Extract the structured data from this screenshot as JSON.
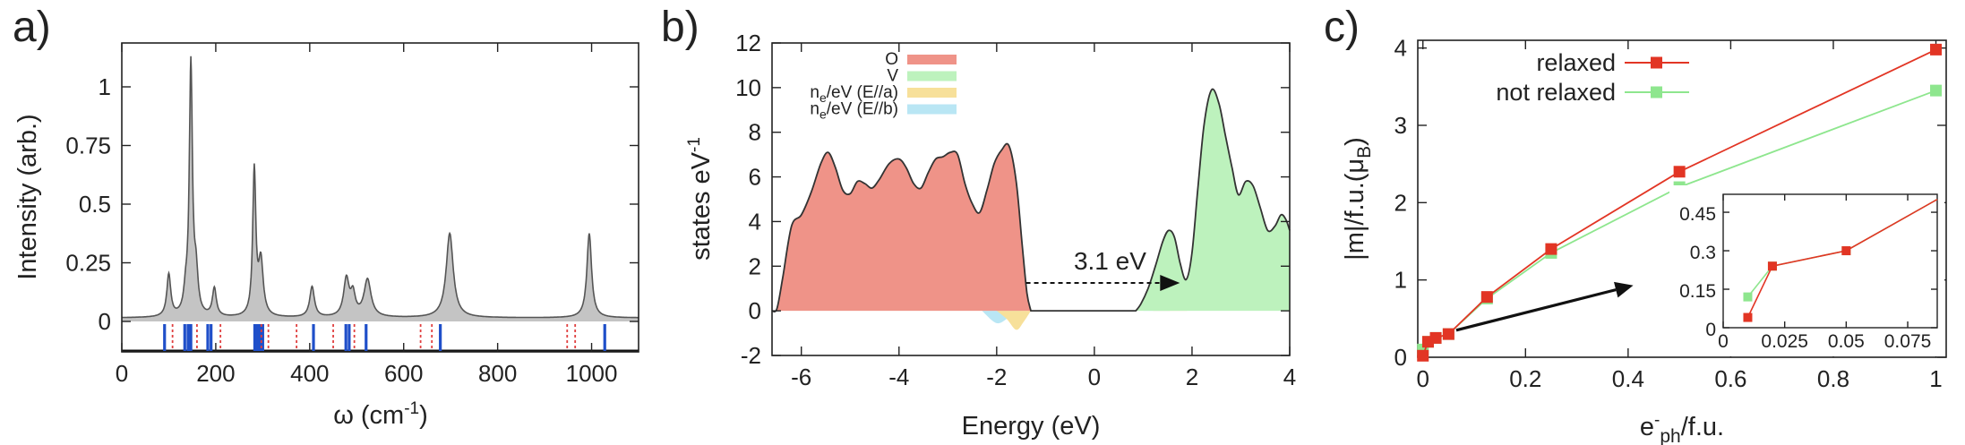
{
  "figure": {
    "panel_letters": [
      "a)",
      "b)",
      "c)"
    ],
    "colors": {
      "raman_fill": "#c4c4c4",
      "raman_line": "#555555",
      "blue_ticks": "#1f4fc9",
      "red_ticks": "#e04040",
      "O": "#ef9388",
      "V": "#bdf2bd",
      "E_a": "#f7e09a",
      "E_b": "#b9e6f4",
      "relaxed": "#e23524",
      "not_relaxed": "#8ee68e",
      "arrow": "#111111"
    }
  },
  "chart_data": [
    {
      "id": "a",
      "type": "line",
      "title": "",
      "xlabel_main": "ω (cm",
      "xlabel_sup": "-1",
      "xlabel_end": ")",
      "ylabel": "Intensity (arb.)",
      "xlim": [
        0,
        1100
      ],
      "ylim": [
        -0.12,
        1.2
      ],
      "xticks": [
        0,
        200,
        400,
        600,
        800,
        1000
      ],
      "xtick_labels": [
        "0",
        "200",
        "400",
        "600",
        "800",
        "1000"
      ],
      "yticks": [
        0,
        0.25,
        0.5,
        0.75,
        1
      ],
      "ytick_labels": [
        "0",
        "0.25",
        "0.5",
        "0.75",
        "1"
      ],
      "baseline": 0.015,
      "peaks": [
        {
          "x": 100,
          "h": 0.18,
          "w": 5
        },
        {
          "x": 136,
          "h": 0.08,
          "w": 5
        },
        {
          "x": 147,
          "h": 1.07,
          "w": 4
        },
        {
          "x": 158,
          "h": 0.16,
          "w": 5
        },
        {
          "x": 197,
          "h": 0.12,
          "w": 5
        },
        {
          "x": 282,
          "h": 0.62,
          "w": 4
        },
        {
          "x": 296,
          "h": 0.23,
          "w": 6
        },
        {
          "x": 405,
          "h": 0.13,
          "w": 6
        },
        {
          "x": 478,
          "h": 0.16,
          "w": 7
        },
        {
          "x": 492,
          "h": 0.09,
          "w": 6
        },
        {
          "x": 523,
          "h": 0.16,
          "w": 9
        },
        {
          "x": 698,
          "h": 0.36,
          "w": 9
        },
        {
          "x": 995,
          "h": 0.36,
          "w": 6
        }
      ],
      "blue_modes": [
        91,
        134,
        141,
        147,
        183,
        190,
        283,
        288,
        292,
        296,
        300,
        408,
        477,
        484,
        520,
        678,
        1028
      ],
      "red_modes": [
        108,
        160,
        210,
        297,
        312,
        372,
        450,
        495,
        636,
        660,
        948,
        965
      ]
    },
    {
      "id": "b",
      "type": "area",
      "title": "",
      "xlabel": "Energy (eV)",
      "ylabel_main": "states eV",
      "ylabel_sup": "-1",
      "xlim": [
        -6.6,
        4.0
      ],
      "ylim": [
        -2,
        12
      ],
      "xticks": [
        -6,
        -4,
        -2,
        0,
        2,
        4
      ],
      "xtick_labels": [
        "-6",
        "-4",
        "-2",
        "0",
        "2",
        "4"
      ],
      "yticks": [
        -2,
        0,
        2,
        4,
        6,
        8,
        10,
        12
      ],
      "ytick_labels": [
        "-2",
        "0",
        "2",
        "4",
        "6",
        "8",
        "10",
        "12"
      ],
      "legend": [
        {
          "label": "O",
          "sub": "",
          "tail": "",
          "color_key": "O"
        },
        {
          "label": "V",
          "sub": "",
          "tail": "",
          "color_key": "V"
        },
        {
          "label": "n",
          "sub": "e",
          "tail": "/eV (E//a)",
          "color_key": "E_a"
        },
        {
          "label": "n",
          "sub": "e",
          "tail": "/eV (E//b)",
          "color_key": "E_b"
        }
      ],
      "series": [
        {
          "name": "O",
          "x": [
            -6.6,
            -6.5,
            -6.38,
            -6.2,
            -6.0,
            -5.8,
            -5.6,
            -5.45,
            -5.3,
            -5.15,
            -5.0,
            -4.85,
            -4.7,
            -4.55,
            -4.4,
            -4.2,
            -4.0,
            -3.85,
            -3.7,
            -3.55,
            -3.4,
            -3.25,
            -3.1,
            -2.95,
            -2.8,
            -2.65,
            -2.5,
            -2.35,
            -2.2,
            -2.05,
            -1.9,
            -1.75,
            -1.6,
            -1.48,
            -1.38,
            -1.3
          ],
          "y": [
            0,
            0.1,
            1.5,
            3.8,
            4.3,
            5.3,
            6.6,
            7.1,
            6.4,
            5.4,
            5.25,
            5.8,
            5.7,
            5.5,
            5.9,
            6.6,
            6.8,
            6.4,
            5.7,
            5.5,
            6.2,
            6.8,
            6.9,
            7.1,
            7.0,
            5.7,
            4.8,
            4.4,
            5.4,
            6.6,
            7.2,
            7.4,
            5.8,
            3.0,
            0.8,
            0
          ]
        },
        {
          "name": "V",
          "x": [
            0.85,
            0.95,
            1.1,
            1.25,
            1.4,
            1.52,
            1.64,
            1.76,
            1.88,
            2.0,
            2.12,
            2.25,
            2.4,
            2.55,
            2.68,
            2.82,
            2.95,
            3.1,
            3.25,
            3.4,
            3.55,
            3.7,
            3.82,
            3.92,
            4.0
          ],
          "y": [
            0,
            0.3,
            1.0,
            2.0,
            3.1,
            3.6,
            3.3,
            2.1,
            1.4,
            2.6,
            5.5,
            8.4,
            9.9,
            9.3,
            7.9,
            6.4,
            5.2,
            5.8,
            5.6,
            4.6,
            3.6,
            3.8,
            4.3,
            4.1,
            3.6
          ]
        },
        {
          "name": "E_a",
          "x": [
            -2.0,
            -1.8,
            -1.6,
            -1.45,
            -1.3,
            1.2,
            1.35,
            1.5,
            1.62,
            1.75,
            1.9
          ],
          "y": [
            0,
            -0.35,
            -0.85,
            -0.5,
            0,
            0,
            0.5,
            0.9,
            0.6,
            0.25,
            0
          ]
        },
        {
          "name": "E_b",
          "x": [
            -2.3,
            -2.0,
            -1.75,
            -1.5,
            1.0,
            1.15,
            1.35,
            1.55
          ],
          "y": [
            0,
            -0.55,
            -0.3,
            0,
            0,
            0.35,
            0.5,
            0
          ]
        }
      ],
      "annotation": {
        "text": "3.1 eV",
        "arrow_from": [
          -1.4,
          1.25
        ],
        "arrow_to": [
          1.75,
          1.25
        ]
      }
    },
    {
      "id": "c",
      "type": "line",
      "title": "",
      "xlabel_main": "e",
      "xlabel_sup": "-",
      "xlabel_sub": "ph",
      "xlabel_end": "/f.u.",
      "ylabel_main": "|m|/f.u.(μ",
      "ylabel_sub": "B",
      "ylabel_end": ")",
      "xlim": [
        -0.01,
        1.02
      ],
      "ylim": [
        0,
        4.1
      ],
      "xticks": [
        0,
        0.2,
        0.4,
        0.6,
        0.8,
        1
      ],
      "xtick_labels": [
        "0",
        "0.2",
        "0.4",
        "0.6",
        "0.8",
        "1"
      ],
      "yticks": [
        0,
        1,
        2,
        3,
        4
      ],
      "ytick_labels": [
        "0",
        "1",
        "2",
        "3",
        "4"
      ],
      "legend": [
        "relaxed",
        "not relaxed"
      ],
      "series": [
        {
          "name": "relaxed",
          "color_key": "relaxed",
          "x": [
            0.0,
            0.01,
            0.025,
            0.05,
            0.125,
            0.25,
            0.5,
            1.0
          ],
          "y": [
            0.02,
            0.2,
            0.25,
            0.3,
            0.78,
            1.4,
            2.4,
            3.98
          ]
        },
        {
          "name": "not relaxed",
          "color_key": "not_relaxed",
          "x": [
            0.0,
            0.01,
            0.025,
            0.05,
            0.125,
            0.25,
            0.5,
            1.0
          ],
          "y": [
            0.1,
            0.2,
            0.25,
            0.3,
            0.76,
            1.35,
            2.2,
            3.45
          ]
        }
      ],
      "inset": {
        "xlim": [
          0,
          0.087
        ],
        "ylim": [
          0,
          0.52
        ],
        "xticks": [
          0,
          0.025,
          0.05,
          0.075
        ],
        "xtick_labels": [
          "0",
          "0.025",
          "0.05",
          "0.075"
        ],
        "yticks": [
          0,
          0.15,
          0.3,
          0.45
        ],
        "ytick_labels": [
          "0",
          "0.15",
          "0.3",
          "0.45"
        ],
        "series": [
          {
            "name": "relaxed",
            "color_key": "relaxed",
            "x": [
              0.01,
              0.02,
              0.05,
              0.087
            ],
            "y": [
              0.04,
              0.24,
              0.3,
              0.5
            ]
          },
          {
            "name": "not relaxed",
            "color_key": "not_relaxed",
            "x": [
              0.01,
              0.02,
              0.05,
              0.087
            ],
            "y": [
              0.12,
              0.24,
              0.3,
              0.5
            ]
          }
        ]
      },
      "arrow": {
        "from": [
          0.065,
          0.35
        ],
        "to": [
          0.41,
          0.93
        ]
      }
    }
  ]
}
